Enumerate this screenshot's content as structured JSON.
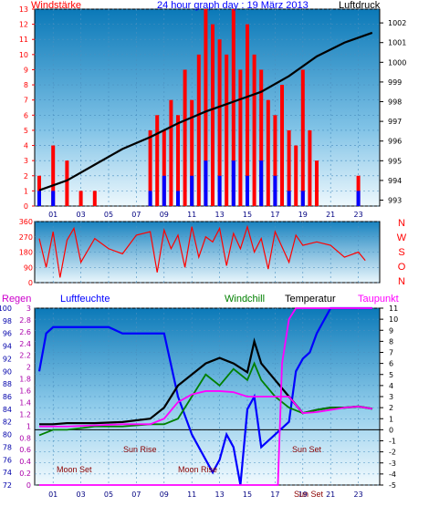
{
  "chart_data": [
    {
      "type": "line",
      "title": "24 hour graph day : 19 März 2013",
      "left_label": "Windstärke",
      "right_label": "Luftdruck",
      "x_ticks": [
        "01",
        "03",
        "05",
        "07",
        "09",
        "11",
        "13",
        "15",
        "17",
        "19",
        "21",
        "23"
      ],
      "y_left_ticks": [
        "0",
        "1",
        "2",
        "3",
        "4",
        "5",
        "6",
        "7",
        "8",
        "9",
        "10",
        "11",
        "12",
        "13"
      ],
      "y_right_ticks": [
        "993",
        "994",
        "995",
        "996",
        "997",
        "998",
        "999",
        "1000",
        "1001",
        "1002"
      ],
      "y_left_range": [
        0,
        13
      ],
      "y_right_range": [
        992.7,
        1002.7
      ],
      "series": [
        {
          "name": "Windstärke",
          "color": "#ff0000",
          "kind": "bars",
          "x": [
            0,
            1,
            2,
            3,
            4,
            7.5,
            8,
            8.5,
            9,
            9.5,
            10,
            10.5,
            11,
            11.5,
            12,
            12.5,
            13,
            13.5,
            14,
            14.5,
            15,
            15.5,
            16,
            16.5,
            17,
            17.5,
            18,
            18.5,
            19,
            19.5,
            20,
            23
          ],
          "values": [
            2,
            4,
            3,
            1,
            1,
            0,
            5,
            6,
            5,
            7,
            6,
            9,
            7,
            10,
            13,
            12,
            11,
            10,
            13,
            9,
            12,
            10,
            9,
            7,
            6,
            8,
            5,
            4,
            9,
            5,
            3,
            2
          ]
        },
        {
          "name": "Windstärke (min)",
          "color": "#0000ff",
          "kind": "bars",
          "x": [
            0,
            1,
            8,
            9,
            10,
            11,
            12,
            13,
            14,
            15,
            16,
            17,
            18,
            19,
            23
          ],
          "values": [
            1,
            1,
            1,
            2,
            1,
            2,
            3,
            2,
            3,
            2,
            3,
            2,
            1,
            1,
            1
          ]
        },
        {
          "name": "Luftdruck",
          "color": "#000000",
          "kind": "line",
          "x": [
            0,
            2,
            4,
            6,
            8,
            10,
            12,
            14,
            16,
            18,
            20,
            22,
            24
          ],
          "values": [
            993.5,
            994,
            994.8,
            995.6,
            996.2,
            996.9,
            997.5,
            998,
            998.5,
            999.3,
            1000.3,
            1001,
            1001.5
          ]
        }
      ]
    },
    {
      "type": "line",
      "title": "",
      "right_label_letters": [
        "N",
        "W",
        "S",
        "O",
        "N"
      ],
      "y_ticks": [
        "0",
        "90",
        "180",
        "270",
        "360"
      ],
      "y_range": [
        0,
        360
      ],
      "series": [
        {
          "name": "Windrichtung",
          "color": "#ff0000",
          "x": [
            0,
            0.5,
            1,
            1.5,
            2,
            2.5,
            3,
            4,
            5,
            6,
            7,
            8,
            8.5,
            9,
            9.5,
            10,
            10.5,
            11,
            11.5,
            12,
            12.5,
            13,
            13.5,
            14,
            14.5,
            15,
            15.5,
            16,
            16.5,
            17,
            17.5,
            18,
            18.5,
            19,
            20,
            21,
            22,
            23,
            23.5
          ],
          "values": [
            260,
            90,
            300,
            30,
            250,
            320,
            120,
            260,
            200,
            170,
            280,
            300,
            60,
            310,
            200,
            280,
            90,
            330,
            150,
            270,
            240,
            320,
            100,
            290,
            200,
            330,
            180,
            260,
            80,
            300,
            210,
            120,
            280,
            220,
            240,
            220,
            150,
            180,
            130
          ]
        }
      ]
    },
    {
      "type": "line",
      "title": "",
      "labels": {
        "regen": "Regen",
        "luftfeuchte": "Luftfeuchte",
        "windchill": "Windchill",
        "temperatur": "Temperatur",
        "taupunkt": "Taupunkt"
      },
      "y_left_outer_ticks": [
        "72",
        "74",
        "76",
        "78",
        "80",
        "82",
        "84",
        "86",
        "88",
        "90",
        "92",
        "94",
        "96",
        "98",
        "100"
      ],
      "y_left_inner_ticks": [
        "0",
        "0.2",
        "0.4",
        "0.6",
        "0.8",
        "1",
        "1.2",
        "1.4",
        "1.6",
        "1.8",
        "2",
        "2.2",
        "2.4",
        "2.6",
        "2.8",
        "3"
      ],
      "y_right_ticks": [
        "-5",
        "-4",
        "-3",
        "-2",
        "-1",
        "0",
        "1",
        "2",
        "3",
        "4",
        "5",
        "6",
        "7",
        "8",
        "9",
        "10",
        "11"
      ],
      "y_right_range": [
        -5,
        11
      ],
      "annotations": [
        "Moon Set",
        "Sun Rise",
        "Moon Rise",
        "Sun Set",
        "Sun Set"
      ],
      "series": [
        {
          "name": "Luftfeuchte",
          "color": "#0000ff",
          "x": [
            0,
            0.5,
            1,
            2,
            3,
            4,
            5,
            6,
            7,
            8,
            9,
            10,
            11,
            12,
            12.5,
            13,
            13.5,
            14,
            14.5,
            15,
            15.5,
            16,
            17,
            18,
            18.5,
            19,
            19.5,
            20,
            21,
            22,
            23,
            24
          ],
          "values": [
            90,
            96,
            97,
            97,
            97,
            97,
            97,
            96,
            96,
            96,
            96,
            86,
            80,
            76,
            74,
            76,
            80,
            78,
            72,
            84,
            86,
            78,
            80,
            82,
            90,
            92,
            93,
            96,
            100,
            100,
            100,
            100
          ]
        },
        {
          "name": "Temperatur",
          "color": "#000000",
          "x": [
            0,
            1,
            2,
            4,
            6,
            8,
            9,
            10,
            11,
            12,
            13,
            14,
            15,
            15.5,
            16,
            17,
            18,
            19,
            20,
            21,
            22,
            23,
            24
          ],
          "values": [
            0.5,
            0.5,
            0.6,
            0.6,
            0.7,
            1,
            2,
            4,
            5,
            6,
            6.5,
            6,
            5.2,
            8,
            6,
            4.5,
            3,
            1.5,
            1.8,
            2,
            2,
            2.1,
            1.9
          ]
        },
        {
          "name": "Windchill",
          "color": "#008000",
          "x": [
            0,
            1,
            2,
            4,
            6,
            8,
            9,
            10,
            11,
            12,
            13,
            14,
            15,
            15.5,
            16,
            17,
            18,
            19,
            20,
            21,
            22,
            23,
            24
          ],
          "values": [
            -0.5,
            0,
            0,
            0.3,
            0.3,
            0.5,
            0.5,
            1,
            3,
            5,
            4,
            5.5,
            4.5,
            6,
            4.5,
            3,
            2,
            1.5,
            1.8,
            2,
            2,
            2.1,
            1.9
          ]
        },
        {
          "name": "Taupunkt",
          "color": "#ff00ff",
          "x": [
            0,
            2,
            4,
            6,
            8,
            9,
            10,
            11,
            12,
            13,
            14,
            15,
            16,
            17,
            18,
            19,
            20,
            21,
            22,
            23,
            24
          ],
          "values": [
            0.3,
            0.3,
            0.4,
            0.5,
            0.5,
            1,
            2.5,
            3.2,
            3.5,
            3.5,
            3.4,
            3,
            3,
            3,
            3,
            1.5,
            1.6,
            1.8,
            2,
            2.1,
            1.9
          ]
        },
        {
          "name": "Regen",
          "color": "#ff00ff",
          "x": [
            0,
            17.2,
            17.5,
            18,
            18.5,
            24
          ],
          "values": [
            -5,
            -5,
            6,
            10,
            11,
            11
          ]
        }
      ]
    }
  ]
}
